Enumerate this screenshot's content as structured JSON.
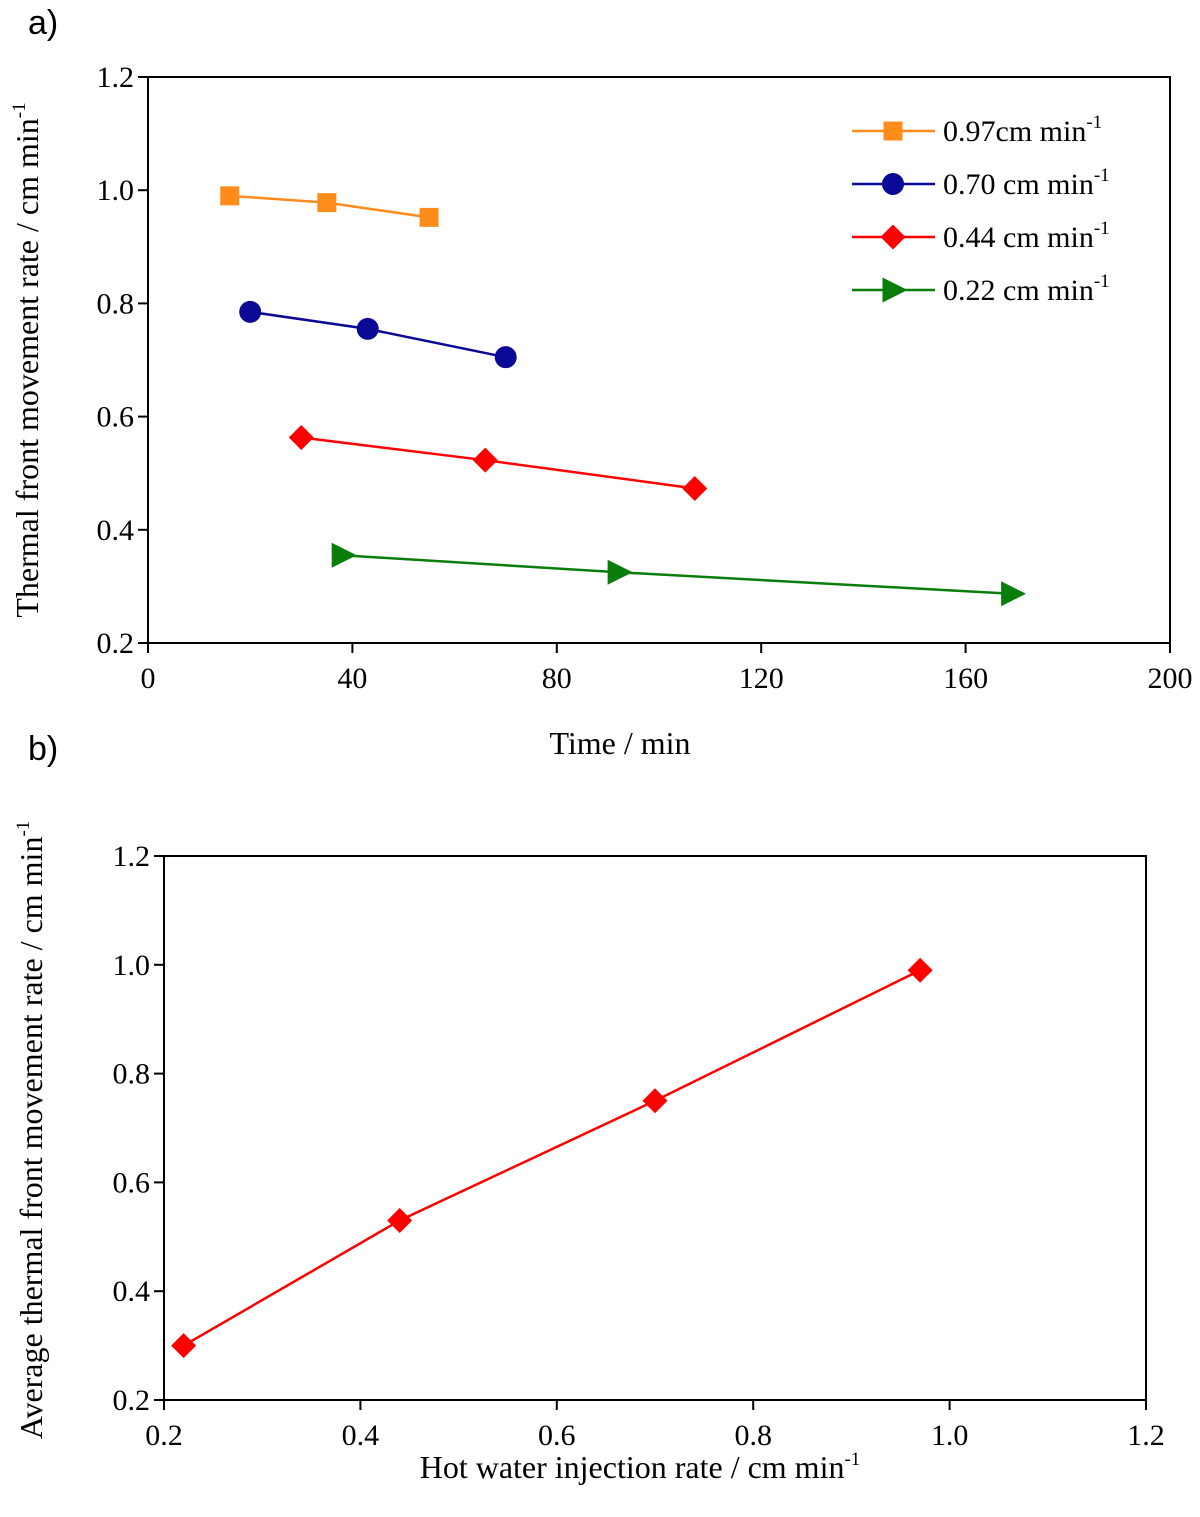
{
  "chart_data": [
    {
      "id": "a",
      "panel_label": "a)",
      "type": "line",
      "xlabel": "Time / min",
      "ylabel_main": "Thermal front movement rate / cm min",
      "ylabel_sup": "-1",
      "xlim": [
        0,
        200
      ],
      "ylim": [
        0.2,
        1.2
      ],
      "xticks": [
        "0",
        "40",
        "80",
        "120",
        "160",
        "200"
      ],
      "xtick_values": [
        0,
        40,
        80,
        120,
        160,
        200
      ],
      "yticks": [
        "0.2",
        "0.4",
        "0.6",
        "0.8",
        "1.0",
        "1.2"
      ],
      "ytick_values": [
        0.2,
        0.4,
        0.6,
        0.8,
        1.0,
        1.2
      ],
      "grid": false,
      "legend_position": "top-right",
      "series": [
        {
          "name": "0.97cm min",
          "sup": "-1",
          "color": "#FF8C1A",
          "marker": "square",
          "x": [
            16,
            35,
            55
          ],
          "y": [
            0.99,
            0.978,
            0.952
          ]
        },
        {
          "name": "0.70 cm min",
          "sup": "-1",
          "color": "#0A0A96",
          "marker": "circle",
          "x": [
            20,
            43,
            70
          ],
          "y": [
            0.785,
            0.755,
            0.705
          ]
        },
        {
          "name": "0.44 cm min",
          "sup": "-1",
          "color": "#FF0000",
          "marker": "diamond",
          "x": [
            30,
            66,
            107
          ],
          "y": [
            0.563,
            0.523,
            0.473
          ]
        },
        {
          "name": "0.22 cm min",
          "sup": "-1",
          "color": "#0A7D0A",
          "marker": "triangle-right",
          "x": [
            38,
            92,
            169
          ],
          "y": [
            0.355,
            0.325,
            0.287
          ]
        }
      ]
    },
    {
      "id": "b",
      "panel_label": "b)",
      "type": "line",
      "xlabel_main": "Hot water injection rate  / cm min",
      "xlabel_sup": "-1",
      "ylabel_main": "Average thermal front movement rate / cm min",
      "ylabel_sup": "-1",
      "xlim": [
        0.2,
        1.2
      ],
      "ylim": [
        0.2,
        1.2
      ],
      "xticks": [
        "0.2",
        "0.4",
        "0.6",
        "0.8",
        "1.0",
        "1.2"
      ],
      "xtick_values": [
        0.2,
        0.4,
        0.6,
        0.8,
        1.0,
        1.2
      ],
      "yticks": [
        "0.2",
        "0.4",
        "0.6",
        "0.8",
        "1.0",
        "1.2"
      ],
      "ytick_values": [
        0.2,
        0.4,
        0.6,
        0.8,
        1.0,
        1.2
      ],
      "grid": false,
      "series": [
        {
          "name": "Average thermal front movement rate",
          "color": "#FF0000",
          "marker": "diamond",
          "x": [
            0.22,
            0.44,
            0.7,
            0.97
          ],
          "y": [
            0.3,
            0.53,
            0.75,
            0.99
          ]
        }
      ]
    }
  ]
}
